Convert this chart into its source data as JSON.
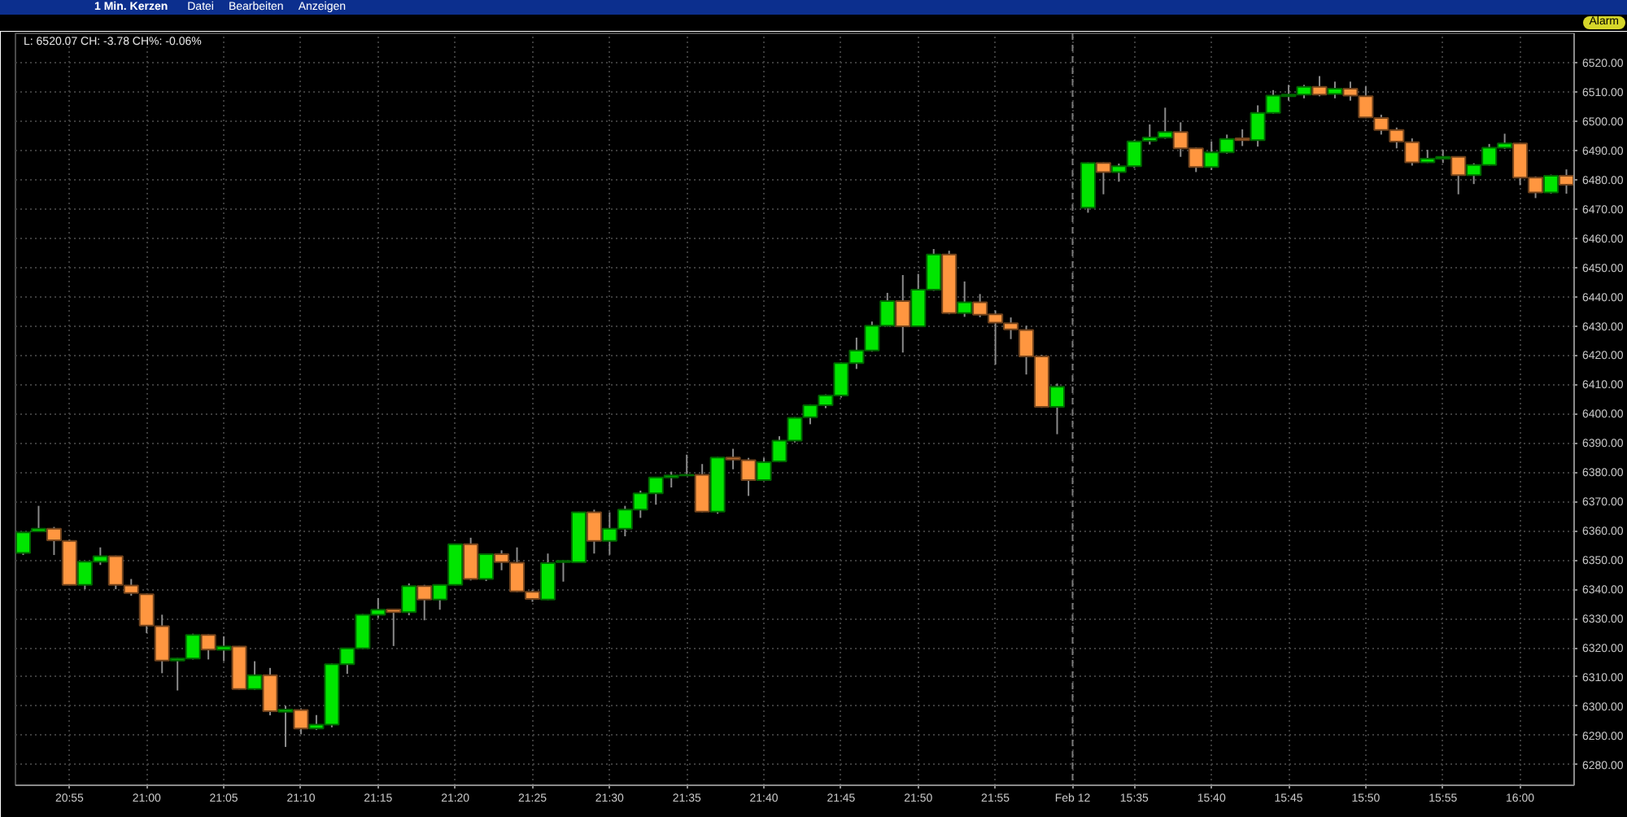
{
  "chart_data": {
    "type": "candlestick",
    "title": "1 Min. Kerzen",
    "subtitle": "L: 6520.07 CH: -3.78 CH%: -0.06%",
    "annotations": [
      "Datei",
      "Bearbeiten",
      "Anzeigen",
      "Alarm"
    ],
    "categories": [
      null,
      null,
      null,
      "20:55",
      null,
      null,
      null,
      null,
      "21:00",
      null,
      null,
      null,
      null,
      "21:05",
      null,
      null,
      null,
      null,
      "21:10",
      null,
      null,
      null,
      null,
      "21:15",
      null,
      null,
      null,
      null,
      "21:20",
      null,
      null,
      null,
      null,
      "21:25",
      null,
      null,
      null,
      null,
      "21:30",
      null,
      null,
      null,
      null,
      "21:35",
      null,
      null,
      null,
      null,
      "21:40",
      null,
      null,
      null,
      null,
      "21:45",
      null,
      null,
      null,
      null,
      "21:50",
      null,
      null,
      null,
      null,
      "21:55",
      null,
      null,
      null,
      null,
      "Feb 12",
      null,
      null,
      null,
      "15:35",
      null,
      null,
      null,
      null,
      "15:40",
      null,
      null,
      null,
      null,
      "15:45",
      null,
      null,
      null,
      null,
      "15:50",
      null,
      null,
      null,
      null,
      "15:55",
      null,
      null,
      null,
      null,
      "16:00",
      null,
      null,
      null
    ],
    "ohlc": [
      [
        6352.4,
        6359.6,
        6351.7,
        6359.4
      ],
      [
        6359.8,
        6368.5,
        6359.6,
        6360.7
      ],
      [
        6360.7,
        6361.3,
        6351.7,
        6356.7
      ],
      [
        6356.5,
        6357.0,
        6341.3,
        6341.5
      ],
      [
        6341.5,
        6349.6,
        6340.0,
        6349.4
      ],
      [
        6349.4,
        6354.3,
        6348.3,
        6351.3
      ],
      [
        6351.3,
        6351.5,
        6340.0,
        6341.5
      ],
      [
        6341.3,
        6343.5,
        6337.8,
        6338.7
      ],
      [
        6338.3,
        6338.5,
        6325.0,
        6327.6
      ],
      [
        6327.4,
        6331.3,
        6311.3,
        6315.6
      ],
      [
        6315.6,
        6316.5,
        6305.4,
        6316.3
      ],
      [
        6316.3,
        6324.8,
        6316.0,
        6324.4
      ],
      [
        6324.4,
        6324.6,
        6316.0,
        6319.4
      ],
      [
        6319.3,
        6323.9,
        6315.4,
        6320.4
      ],
      [
        6320.4,
        6320.6,
        6305.7,
        6305.9
      ],
      [
        6305.9,
        6315.4,
        6305.6,
        6310.6
      ],
      [
        6310.6,
        6313.1,
        6296.9,
        6298.3
      ],
      [
        6298.1,
        6300.2,
        6286.1,
        6298.9
      ],
      [
        6298.7,
        6299.3,
        6290.4,
        6292.4
      ],
      [
        6292.4,
        6297.0,
        6291.9,
        6293.7
      ],
      [
        6293.7,
        6314.6,
        6292.8,
        6314.4
      ],
      [
        6314.4,
        6320.0,
        6311.1,
        6319.8
      ],
      [
        6319.8,
        6331.5,
        6319.6,
        6331.3
      ],
      [
        6331.3,
        6337.0,
        6330.2,
        6333.0
      ],
      [
        6333.1,
        6333.3,
        6320.6,
        6332.2
      ],
      [
        6332.2,
        6342.0,
        6331.1,
        6341.1
      ],
      [
        6341.1,
        6341.5,
        6329.4,
        6336.5
      ],
      [
        6336.5,
        6341.7,
        6333.0,
        6341.5
      ],
      [
        6341.5,
        6355.6,
        6341.3,
        6355.4
      ],
      [
        6355.4,
        6357.6,
        6343.0,
        6343.5
      ],
      [
        6343.5,
        6352.2,
        6342.8,
        6352.0
      ],
      [
        6352.0,
        6353.3,
        6346.5,
        6349.3
      ],
      [
        6349.1,
        6354.3,
        6339.0,
        6339.3
      ],
      [
        6339.1,
        6339.8,
        6335.7,
        6336.7
      ],
      [
        6336.5,
        6352.2,
        6336.3,
        6348.9
      ],
      [
        6349.3,
        6349.8,
        6342.6,
        6349.7
      ],
      [
        6349.2,
        6366.5,
        6349.0,
        6366.3
      ],
      [
        6366.3,
        6367.2,
        6352.2,
        6356.5
      ],
      [
        6356.5,
        6366.3,
        6351.8,
        6360.7
      ],
      [
        6360.7,
        6368.5,
        6358.1,
        6367.2
      ],
      [
        6367.2,
        6373.7,
        6364.4,
        6372.8
      ],
      [
        6372.8,
        6378.4,
        6368.9,
        6378.2
      ],
      [
        6378.2,
        6380.2,
        6374.8,
        6378.9
      ],
      [
        6378.9,
        6386.0,
        6378.7,
        6379.1
      ],
      [
        6379.1,
        6382.8,
        6366.3,
        6366.5
      ],
      [
        6366.5,
        6385.2,
        6365.8,
        6385.0
      ],
      [
        6385.0,
        6388.0,
        6381.0,
        6384.3
      ],
      [
        6384.1,
        6384.9,
        6371.9,
        6377.3
      ],
      [
        6377.3,
        6384.9,
        6377.0,
        6383.4
      ],
      [
        6383.7,
        6392.3,
        6383.4,
        6390.8
      ],
      [
        6390.8,
        6398.8,
        6390.2,
        6398.6
      ],
      [
        6398.8,
        6403.2,
        6396.4,
        6402.9
      ],
      [
        6402.9,
        6406.6,
        6401.9,
        6406.2
      ],
      [
        6406.2,
        6417.5,
        6405.5,
        6417.3
      ],
      [
        6417.3,
        6426.0,
        6415.3,
        6421.6
      ],
      [
        6421.6,
        6431.5,
        6421.2,
        6430.1
      ],
      [
        6430.1,
        6441.3,
        6429.8,
        6438.5
      ],
      [
        6438.5,
        6447.4,
        6420.9,
        6429.9
      ],
      [
        6429.9,
        6447.8,
        6429.7,
        6442.4
      ],
      [
        6442.4,
        6456.3,
        6442.0,
        6454.4
      ],
      [
        6454.4,
        6455.7,
        6434.0,
        6434.4
      ],
      [
        6434.4,
        6445.2,
        6433.1,
        6438.1
      ],
      [
        6438.1,
        6440.9,
        6433.0,
        6433.8
      ],
      [
        6434.0,
        6435.3,
        6416.8,
        6431.1
      ],
      [
        6430.9,
        6432.9,
        6425.5,
        6428.8
      ],
      [
        6428.6,
        6430.1,
        6413.4,
        6419.6
      ],
      [
        6419.6,
        6420.1,
        6402.0,
        6402.3
      ],
      [
        6402.3,
        6410.3,
        6393.0,
        6409.2
      ],
      null,
      [
        6470.4,
        6485.9,
        6468.7,
        6485.7
      ],
      [
        6485.7,
        6485.9,
        6475.0,
        6482.6
      ],
      [
        6482.6,
        6485.5,
        6479.3,
        6484.6
      ],
      [
        6484.6,
        6493.5,
        6484.0,
        6493.1
      ],
      [
        6493.3,
        6498.9,
        6492.0,
        6494.4
      ],
      [
        6494.4,
        6504.6,
        6494.0,
        6496.3
      ],
      [
        6496.3,
        6499.6,
        6487.8,
        6490.7
      ],
      [
        6490.7,
        6491.0,
        6482.6,
        6484.3
      ],
      [
        6484.3,
        6493.1,
        6483.3,
        6489.3
      ],
      [
        6489.3,
        6495.4,
        6488.9,
        6493.9
      ],
      [
        6494.1,
        6497.2,
        6491.5,
        6493.5
      ],
      [
        6493.5,
        6505.4,
        6491.3,
        6502.8
      ],
      [
        6502.8,
        6510.6,
        6502.5,
        6508.7
      ],
      [
        6508.5,
        6512.4,
        6507.0,
        6509.1
      ],
      [
        6509.1,
        6512.4,
        6507.8,
        6511.7
      ],
      [
        6511.7,
        6515.4,
        6508.5,
        6509.1
      ],
      [
        6509.3,
        6513.5,
        6507.8,
        6511.1
      ],
      [
        6511.1,
        6513.5,
        6507.0,
        6508.7
      ],
      [
        6508.5,
        6511.9,
        6501.0,
        6501.3
      ],
      [
        6501.1,
        6502.2,
        6495.4,
        6497.0
      ],
      [
        6497.0,
        6497.8,
        6490.7,
        6493.0
      ],
      [
        6492.8,
        6494.1,
        6484.8,
        6485.9
      ],
      [
        6485.9,
        6490.2,
        6485.7,
        6487.2
      ],
      [
        6487.2,
        6490.2,
        6485.7,
        6487.8
      ],
      [
        6487.8,
        6488.0,
        6475.0,
        6481.5
      ],
      [
        6481.5,
        6485.6,
        6478.5,
        6485.0
      ],
      [
        6485.0,
        6492.2,
        6484.8,
        6490.9
      ],
      [
        6490.9,
        6495.7,
        6490.5,
        6492.4
      ],
      [
        6492.4,
        6492.6,
        6478.1,
        6480.7
      ],
      [
        6480.7,
        6481.1,
        6473.7,
        6475.6
      ],
      [
        6475.6,
        6481.7,
        6475.2,
        6481.3
      ],
      [
        6481.3,
        6483.5,
        6475.2,
        6478.3
      ]
    ],
    "colors": [
      "#00e600",
      "#00e600",
      "#ff9640",
      "#ff9640",
      "#00e600",
      "#00e600",
      "#ff9640",
      "#ff9640",
      "#ff9640",
      "#ff9640",
      "#00e600",
      "#00e600",
      "#ff9640",
      "#00e600",
      "#ff9640",
      "#00e600",
      "#ff9640",
      "#00e600",
      "#ff9640",
      "#00e600",
      "#00e600",
      "#00e600",
      "#00e600",
      "#00e600",
      "#ff9640",
      "#00e600",
      "#ff9640",
      "#00e600",
      "#00e600",
      "#ff9640",
      "#00e600",
      "#ff9640",
      "#ff9640",
      "#ff9640",
      "#00e600",
      "#00e600",
      "#00e600",
      "#ff9640",
      "#00e600",
      "#00e600",
      "#00e600",
      "#00e600",
      "#00e600",
      "#00e600",
      "#ff9640",
      "#00e600",
      "#ff9640",
      "#ff9640",
      "#00e600",
      "#00e600",
      "#00e600",
      "#00e600",
      "#00e600",
      "#00e600",
      "#00e600",
      "#00e600",
      "#00e600",
      "#ff9640",
      "#00e600",
      "#00e600",
      "#ff9640",
      "#00e600",
      "#ff9640",
      "#ff9640",
      "#ff9640",
      "#ff9640",
      "#ff9640",
      "#00e600",
      null,
      "#00e600",
      "#ff9640",
      "#00e600",
      "#00e600",
      "#00e600",
      "#00e600",
      "#ff9640",
      "#ff9640",
      "#00e600",
      "#00e600",
      "#ff9640",
      "#00e600",
      "#00e600",
      "#00e600",
      "#00e600",
      "#ff9640",
      "#00e600",
      "#ff9640",
      "#ff9640",
      "#ff9640",
      "#ff9640",
      "#ff9640",
      "#00e600",
      "#00e600",
      "#ff9640",
      "#00e600",
      "#00e600",
      "#00e600",
      "#ff9640",
      "#ff9640",
      "#00e600",
      "#ff9640"
    ],
    "ylim": [
      6273,
      6530
    ],
    "yticks": [
      {
        "value": 6280,
        "label": "6280.00"
      },
      {
        "value": 6290,
        "label": "6290.00"
      },
      {
        "value": 6300,
        "label": "6300.00"
      },
      {
        "value": 6310,
        "label": "6310.00"
      },
      {
        "value": 6320,
        "label": "6320.00"
      },
      {
        "value": 6330,
        "label": "6330.00"
      },
      {
        "value": 6340,
        "label": "6340.00"
      },
      {
        "value": 6350,
        "label": "6350.00"
      },
      {
        "value": 6360,
        "label": "6360.00"
      },
      {
        "value": 6370,
        "label": "6370.00"
      },
      {
        "value": 6380,
        "label": "6380.00"
      },
      {
        "value": 6390,
        "label": "6390.00"
      },
      {
        "value": 6400,
        "label": "6400.00"
      },
      {
        "value": 6410,
        "label": "6410.00"
      },
      {
        "value": 6420,
        "label": "6420.00"
      },
      {
        "value": 6430,
        "label": "6430.00"
      },
      {
        "value": 6440,
        "label": "6440.00"
      },
      {
        "value": 6450,
        "label": "6450.00"
      },
      {
        "value": 6460,
        "label": "6460.00"
      },
      {
        "value": 6470,
        "label": "6470.00"
      },
      {
        "value": 6480,
        "label": "6480.00"
      },
      {
        "value": 6490,
        "label": "6490.00"
      },
      {
        "value": 6500,
        "label": "6500.00"
      },
      {
        "value": 6510,
        "label": "6510.00"
      },
      {
        "value": 6520,
        "label": "6520.00"
      }
    ],
    "grid": true,
    "ref_lines": [
      {
        "axis": "x",
        "value": "Feb 12",
        "line_style": "dashed",
        "color": "#7a7a7a"
      }
    ]
  }
}
